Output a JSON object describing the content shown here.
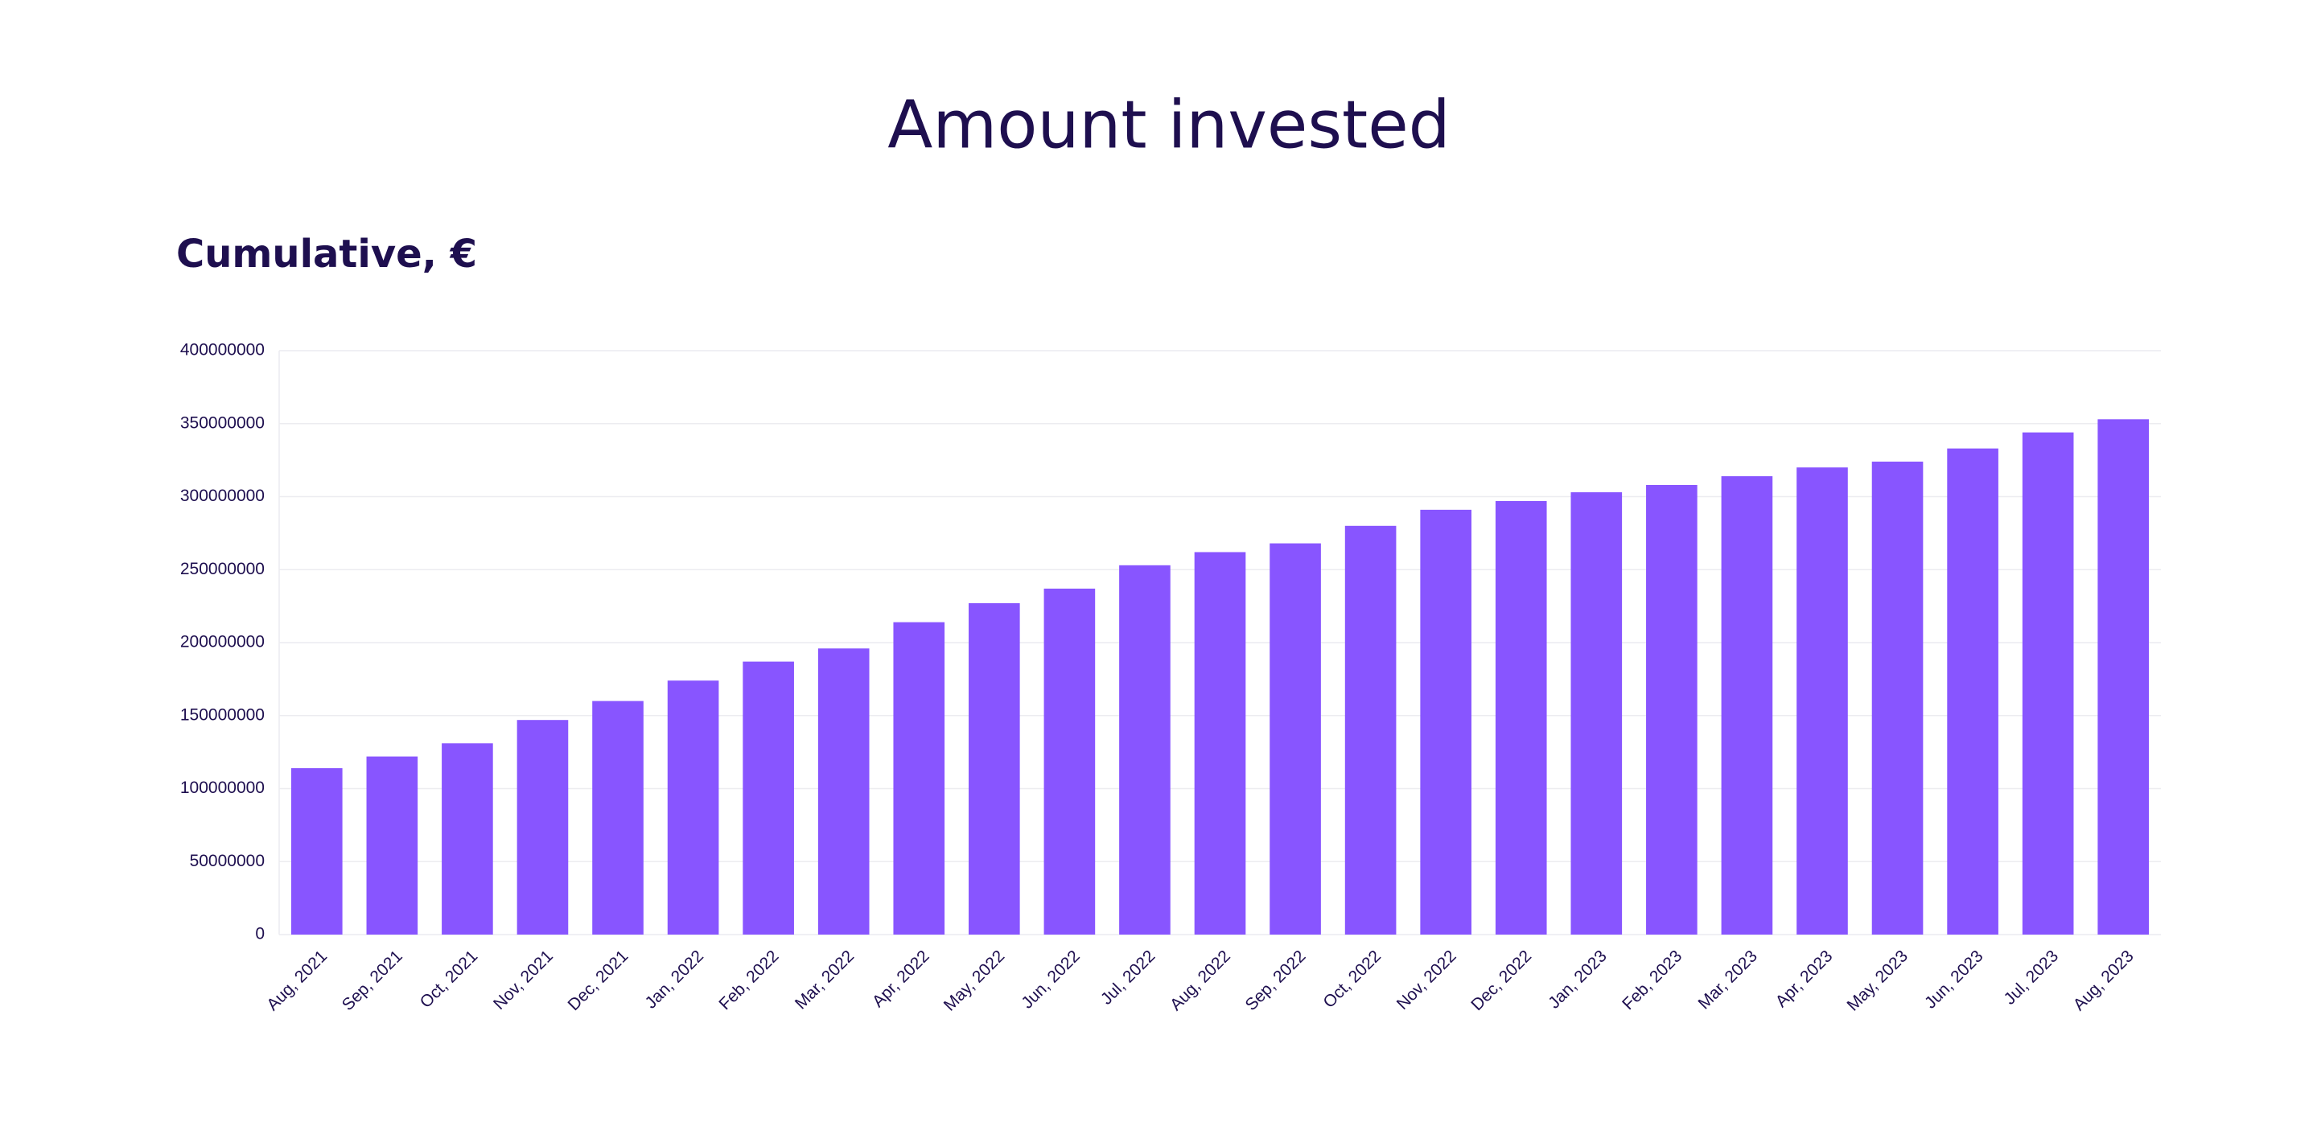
{
  "chart_data": {
    "type": "bar",
    "title": "Amount invested",
    "subtitle": "Cumulative, €",
    "categories": [
      "Aug, 2021",
      "Sep, 2021",
      "Oct, 2021",
      "Nov, 2021",
      "Dec, 2021",
      "Jan, 2022",
      "Feb, 2022",
      "Mar, 2022",
      "Apr, 2022",
      "May, 2022",
      "Jun, 2022",
      "Jul, 2022",
      "Aug, 2022",
      "Sep, 2022",
      "Oct, 2022",
      "Nov, 2022",
      "Dec, 2022",
      "Jan, 2023",
      "Feb, 2023",
      "Mar, 2023",
      "Apr, 2023",
      "May, 2023",
      "Jun, 2023",
      "Jul, 2023",
      "Aug, 2023"
    ],
    "values": [
      114000000,
      122000000,
      131000000,
      147000000,
      160000000,
      174000000,
      187000000,
      196000000,
      214000000,
      227000000,
      237000000,
      253000000,
      262000000,
      268000000,
      280000000,
      291000000,
      297000000,
      303000000,
      308000000,
      314000000,
      320000000,
      324000000,
      333000000,
      344000000,
      353000000
    ],
    "color": "#8855ff",
    "ylim": [
      0,
      400000000
    ],
    "yticks": [
      0,
      50000000,
      100000000,
      150000000,
      200000000,
      250000000,
      300000000,
      350000000,
      400000000
    ],
    "grid": true
  }
}
